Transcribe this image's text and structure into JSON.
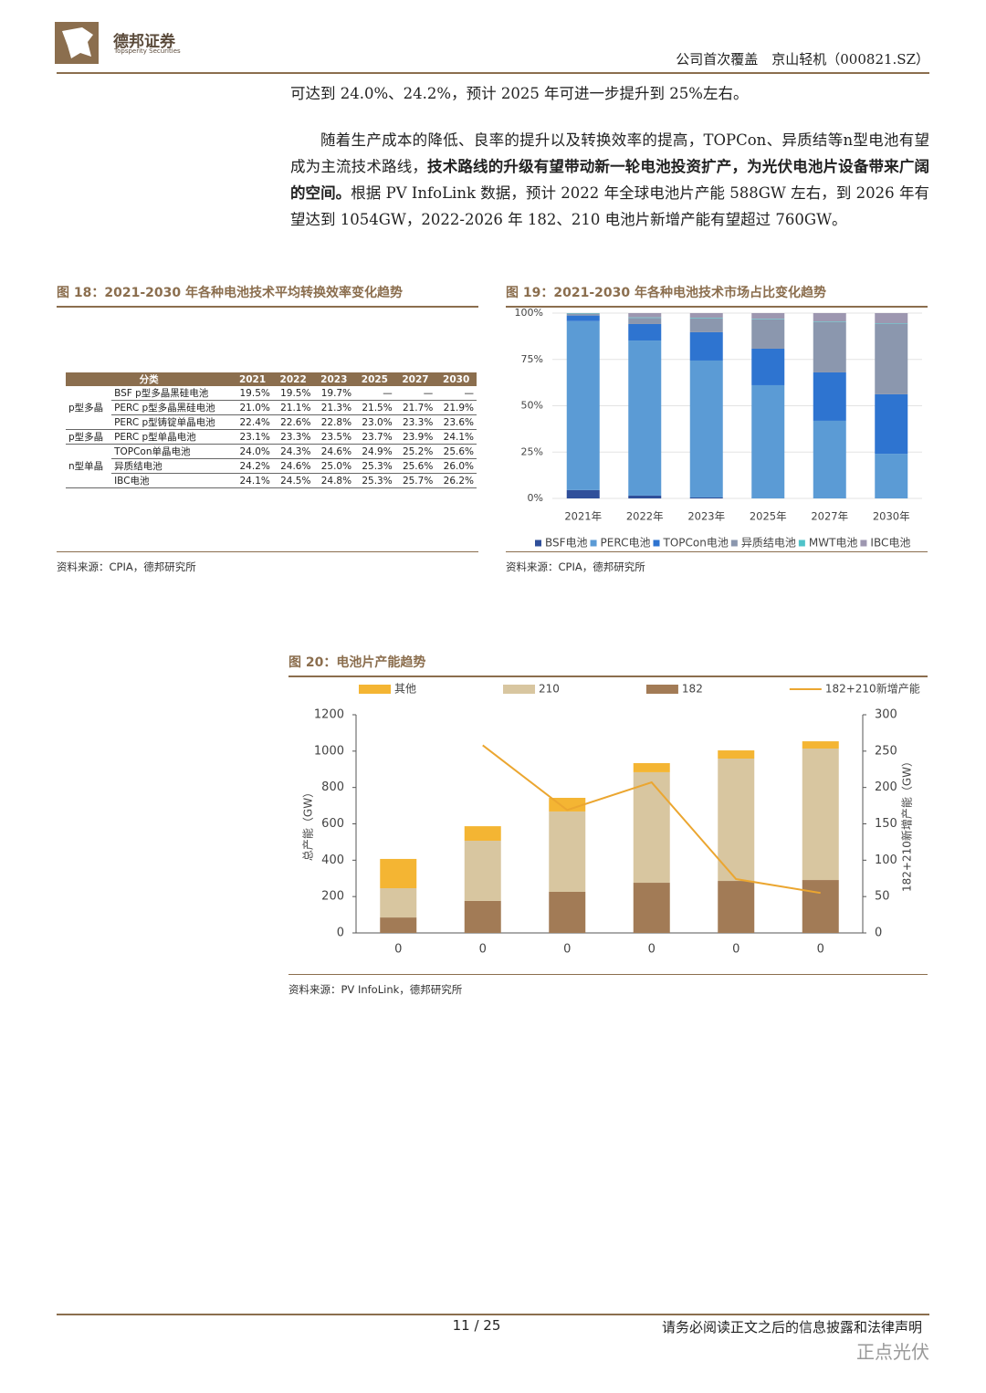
{
  "header": {
    "brand": "德邦证券",
    "brand_en": "Topsperity Securities",
    "report": "公司首次覆盖　京山轻机（000821.SZ）"
  },
  "paragraphs": [
    [
      "可达到 24.0%、24.2%，预计 2025 年可进一步提升到 25%左右。"
    ],
    [
      "随着生产成本的降低、良率的提升以及转换效率的提高，TOPCon、异质结等n型电池有望成为主流技术路线，",
      "技术路线的升级有望带动新一轮电池投资扩产，为光伏电池片设备带来广阔的空间。",
      "根据 PV InfoLink 数据，预计 2022 年全球电池片产能 588GW 左右，到 2026 年有望达到 1054GW，2022-2026 年 182、210 电池片新增产能有望超过 760GW。"
    ]
  ],
  "figures": [
    {
      "title": "图 18：2021-2030 年各种电池技术平均转换效率变化趋势",
      "source": "资料来源：CPIA，德邦研究所",
      "table": {
        "header": [
          "分类",
          "2021",
          "2022",
          "2023",
          "2025",
          "2027",
          "2030"
        ],
        "groups": [
          {
            "label": "p型多晶",
            "rows": [
              [
                "BSF p型多晶黑硅电池",
                "19.5%",
                "19.5%",
                "19.7%",
                "—",
                "—",
                "—"
              ],
              [
                "PERC p型多晶黑硅电池",
                "21.0%",
                "21.1%",
                "21.3%",
                "21.5%",
                "21.7%",
                "21.9%"
              ],
              [
                "PERC p型铸锭单晶电池",
                "22.4%",
                "22.6%",
                "22.8%",
                "23.0%",
                "23.3%",
                "23.6%"
              ]
            ]
          },
          {
            "label": "p型多晶",
            "rows": [
              [
                "PERC p型单晶电池",
                "23.1%",
                "23.3%",
                "23.5%",
                "23.7%",
                "23.9%",
                "24.1%"
              ]
            ]
          },
          {
            "label": "n型单晶",
            "rows": [
              [
                "TOPCon单晶电池",
                "24.0%",
                "24.3%",
                "24.6%",
                "24.9%",
                "25.2%",
                "25.6%"
              ],
              [
                "异质结电池",
                "24.2%",
                "24.6%",
                "25.0%",
                "25.3%",
                "25.6%",
                "26.0%"
              ],
              [
                "IBC电池",
                "24.1%",
                "24.5%",
                "24.8%",
                "25.3%",
                "25.7%",
                "26.2%"
              ]
            ]
          }
        ]
      }
    },
    {
      "title": "图 19：2021-2030 年各种电池技术市场占比变化趋势",
      "source": "资料来源：CPIA，德邦研究所",
      "chart": {
        "type": "bar",
        "stacked": true,
        "categories": [
          "2021年",
          "2022年",
          "2023年",
          "2025年",
          "2027年",
          "2030年"
        ],
        "series": [
          {
            "name": "BSF电池",
            "color": "#2f4f9a",
            "values": [
              4.5,
              1.5,
              0.5,
              0,
              0,
              0
            ]
          },
          {
            "name": "PERC电池",
            "color": "#5b9bd5",
            "values": [
              91.2,
              83.7,
              73.9,
              61.1,
              41.9,
              24.1
            ]
          },
          {
            "name": "TOPCon电池",
            "color": "#2e74d0",
            "values": [
              3.0,
              8.9,
              15.3,
              19.7,
              26.1,
              32.1
            ]
          },
          {
            "name": "异质结电池",
            "color": "#8b97ae",
            "values": [
              0.8,
              3.3,
              7.5,
              15.8,
              27.1,
              37.9
            ]
          },
          {
            "name": "MWT电池",
            "color": "#4fc3c9",
            "values": [
              0.3,
              0.3,
              0.3,
              0.3,
              0.3,
              0.3
            ]
          },
          {
            "name": "IBC电池",
            "color": "#9d97b0",
            "values": [
              0.2,
              2.3,
              2.5,
              3.1,
              4.6,
              5.6
            ]
          }
        ],
        "ylim": [
          0,
          100
        ],
        "yticks": [
          {
            "value": 0,
            "label": "0%"
          },
          {
            "value": 25,
            "label": "25%"
          },
          {
            "value": 50,
            "label": "50%"
          },
          {
            "value": 75,
            "label": "75%"
          },
          {
            "value": 100,
            "label": "100%"
          }
        ],
        "grid": true,
        "legend": "bottom"
      }
    },
    {
      "title": "图 20：电池片产能趋势",
      "source": "资料来源：PV InfoLink，德邦研究所",
      "chart": {
        "type": "bar-line",
        "categories": [
          "0",
          "0",
          "0",
          "0",
          "0",
          "0"
        ],
        "ylabel": "总产能（GW）",
        "y2label": "182+210新增产能（GW）",
        "series": [
          {
            "name": "其他",
            "color": "#f4b533",
            "values": [
              161,
              80,
              75,
              50,
              45,
              40
            ]
          },
          {
            "name": "210",
            "color": "#d8c6a0",
            "values": [
              161,
              331,
              442,
              608,
              673,
              723
            ]
          },
          {
            "name": "182",
            "color": "#a27b56",
            "values": [
              85,
              176,
              226,
              276,
              286,
              291
            ]
          },
          {
            "name": "182+210新增产能",
            "color": "#eba630",
            "type": "line",
            "axis": "y2",
            "values": [
              null,
              258,
              169,
              207,
              74,
              55
            ]
          }
        ],
        "ylim": [
          0,
          1200
        ],
        "yticks": [
          0,
          200,
          400,
          600,
          800,
          1000,
          1200
        ],
        "y2lim": [
          0,
          300
        ],
        "y2ticks": [
          0,
          50,
          100,
          150,
          200,
          250,
          300
        ],
        "grid": false,
        "legend": "top"
      }
    }
  ],
  "footer": {
    "page": "11 / 25",
    "disclaimer": "请务必阅读正文之后的信息披露和法律声明",
    "watermark": "正点光伏"
  }
}
